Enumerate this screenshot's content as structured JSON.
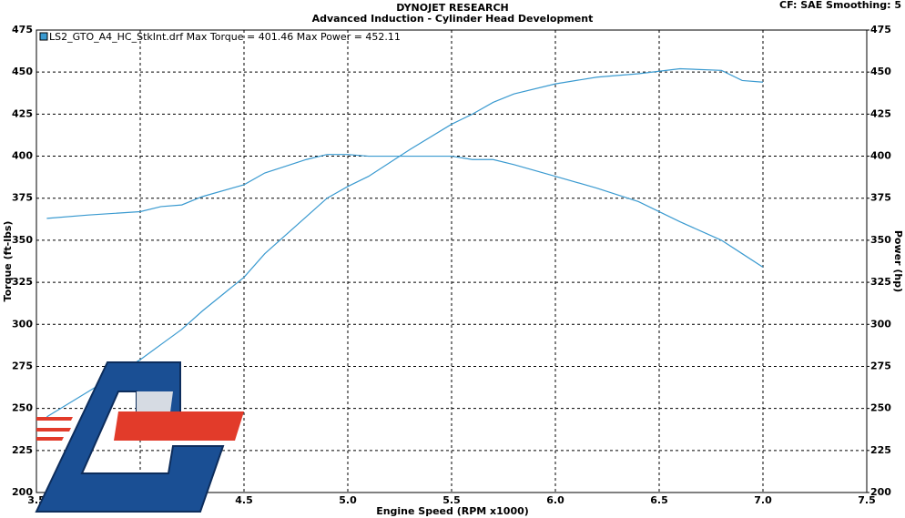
{
  "chart_data": {
    "type": "line",
    "title": "DYNOJET RESEARCH",
    "subtitle": "Advanced Induction - Cylinder Head Development",
    "settings_text": "CF: SAE  Smoothing: 5",
    "legend_text": "LS2_GTO_A4_HC_StkInt.drf Max Torque = 401.46    Max Power = 452.11",
    "x_label": "Engine Speed (RPM x1000)",
    "y_label": "Torque (ft-lbs)",
    "y2_label": "Power (hp)",
    "grid": true,
    "x": [
      3.55,
      3.75,
      4.0,
      4.1,
      4.2,
      4.3,
      4.5,
      4.6,
      4.8,
      4.9,
      5.0,
      5.1,
      5.3,
      5.5,
      5.6,
      5.7,
      5.8,
      6.0,
      6.2,
      6.4,
      6.6,
      6.8,
      6.9,
      7.0
    ],
    "series": [
      {
        "color": "#3a9ad0",
        "values": [
          363,
          365,
          367,
          370,
          371,
          376,
          383,
          390,
          398,
          401,
          401,
          400,
          400,
          400,
          398,
          398,
          395,
          388,
          381,
          373,
          361,
          350,
          342,
          334
        ]
      },
      {
        "color": "#3a9ad0",
        "axis": "y2",
        "values": [
          245,
          260,
          279,
          288,
          297,
          308,
          328,
          342,
          364,
          375,
          382,
          388,
          404,
          419,
          425,
          432,
          437,
          443,
          447,
          449,
          452,
          451,
          445,
          444
        ]
      }
    ],
    "xlim": [
      3.5,
      7.5
    ],
    "xticks": [
      3.5,
      {
        "value": 4,
        "label": "4.0"
      },
      4.5,
      {
        "value": 5,
        "label": "5.0"
      },
      5.5,
      {
        "value": 6,
        "label": "6.0"
      },
      6.5,
      {
        "value": 7,
        "label": "7.0"
      },
      7.5
    ],
    "ylim": [
      200,
      475
    ],
    "yticks": [
      200,
      225,
      250,
      275,
      300,
      325,
      350,
      375,
      400,
      425,
      450,
      475
    ],
    "y2lim": [
      200,
      475
    ],
    "y2ticks": [
      200,
      225,
      250,
      275,
      300,
      325,
      350,
      375,
      400,
      425,
      450,
      475
    ]
  }
}
